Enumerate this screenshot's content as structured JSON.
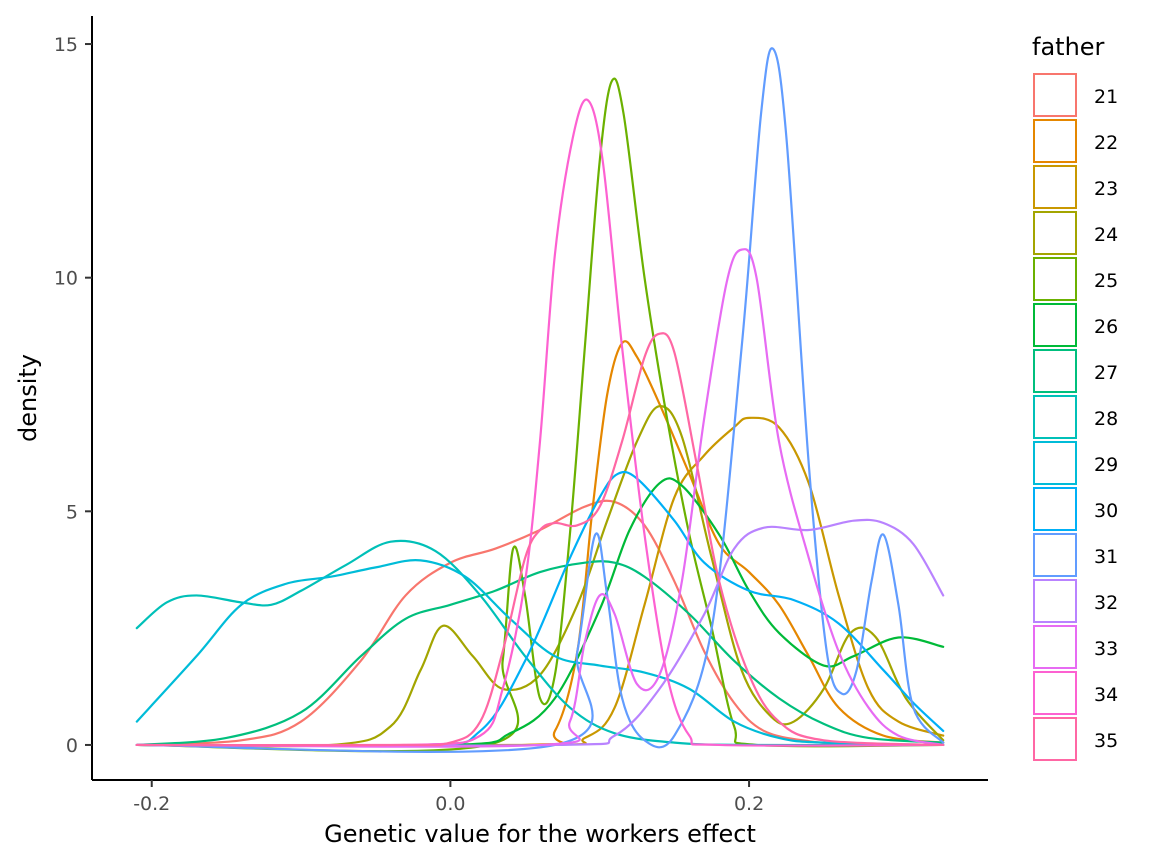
{
  "chart_data": {
    "type": "density",
    "xlabel": "Genetic value for the workers effect",
    "ylabel": "density",
    "xlim": [
      -0.24,
      0.36
    ],
    "ylim": [
      -0.75,
      15.6
    ],
    "x_ticks": [
      -0.2,
      0.0,
      0.2
    ],
    "x_tick_labels": [
      "-0.2",
      "0.0",
      "0.2"
    ],
    "y_ticks": [
      0,
      5,
      10,
      15
    ],
    "y_tick_labels": [
      "0",
      "5",
      "10",
      "15"
    ],
    "grid": false,
    "legend": {
      "title": "father",
      "position": "right",
      "entries": [
        "21",
        "22",
        "23",
        "24",
        "25",
        "26",
        "27",
        "28",
        "29",
        "30",
        "31",
        "32",
        "33",
        "34",
        "35"
      ]
    },
    "series": [
      {
        "name": "21",
        "color": "#F8766D",
        "points": [
          [
            -0.21,
            0.0
          ],
          [
            -0.14,
            0.1
          ],
          [
            -0.1,
            0.5
          ],
          [
            -0.06,
            1.8
          ],
          [
            -0.03,
            3.2
          ],
          [
            0.0,
            3.9
          ],
          [
            0.03,
            4.2
          ],
          [
            0.06,
            4.6
          ],
          [
            0.09,
            5.1
          ],
          [
            0.11,
            5.2
          ],
          [
            0.13,
            4.7
          ],
          [
            0.15,
            3.5
          ],
          [
            0.17,
            2.0
          ],
          [
            0.19,
            0.9
          ],
          [
            0.21,
            0.3
          ],
          [
            0.24,
            0.08
          ],
          [
            0.27,
            0.02
          ],
          [
            0.33,
            0.0
          ]
        ]
      },
      {
        "name": "22",
        "color": "#E58700",
        "points": [
          [
            -0.21,
            0.0
          ],
          [
            0.05,
            0.0
          ],
          [
            0.07,
            0.3
          ],
          [
            0.085,
            2.0
          ],
          [
            0.095,
            5.0
          ],
          [
            0.105,
            7.5
          ],
          [
            0.115,
            8.6
          ],
          [
            0.125,
            8.3
          ],
          [
            0.14,
            7.3
          ],
          [
            0.16,
            5.8
          ],
          [
            0.18,
            4.3
          ],
          [
            0.2,
            3.7
          ],
          [
            0.22,
            3.0
          ],
          [
            0.24,
            1.9
          ],
          [
            0.26,
            0.8
          ],
          [
            0.29,
            0.2
          ],
          [
            0.33,
            0.05
          ]
        ]
      },
      {
        "name": "23",
        "color": "#C99800",
        "points": [
          [
            -0.21,
            0.0
          ],
          [
            0.06,
            0.0
          ],
          [
            0.09,
            0.15
          ],
          [
            0.11,
            0.8
          ],
          [
            0.13,
            3.0
          ],
          [
            0.15,
            5.3
          ],
          [
            0.17,
            6.2
          ],
          [
            0.19,
            6.8
          ],
          [
            0.2,
            7.0
          ],
          [
            0.22,
            6.8
          ],
          [
            0.24,
            5.6
          ],
          [
            0.26,
            3.2
          ],
          [
            0.28,
            1.2
          ],
          [
            0.3,
            0.5
          ],
          [
            0.33,
            0.2
          ]
        ]
      },
      {
        "name": "24",
        "color": "#A3A500",
        "points": [
          [
            -0.21,
            0.0
          ],
          [
            -0.08,
            0.0
          ],
          [
            -0.04,
            0.4
          ],
          [
            -0.02,
            1.6
          ],
          [
            -0.005,
            2.55
          ],
          [
            0.015,
            1.9
          ],
          [
            0.035,
            1.2
          ],
          [
            0.06,
            1.5
          ],
          [
            0.085,
            3.0
          ],
          [
            0.105,
            4.8
          ],
          [
            0.125,
            6.5
          ],
          [
            0.14,
            7.25
          ],
          [
            0.155,
            6.6
          ],
          [
            0.175,
            4.0
          ],
          [
            0.195,
            1.6
          ],
          [
            0.215,
            0.6
          ],
          [
            0.23,
            0.5
          ],
          [
            0.25,
            1.2
          ],
          [
            0.268,
            2.4
          ],
          [
            0.285,
            2.3
          ],
          [
            0.305,
            1.0
          ],
          [
            0.33,
            0.1
          ]
        ]
      },
      {
        "name": "25",
        "color": "#6BB100",
        "points": [
          [
            -0.21,
            0.0
          ],
          [
            0.025,
            0.0
          ],
          [
            0.035,
            1.8
          ],
          [
            0.042,
            4.2
          ],
          [
            0.05,
            3.2
          ],
          [
            0.06,
            1.0
          ],
          [
            0.07,
            1.5
          ],
          [
            0.08,
            4.5
          ],
          [
            0.09,
            8.5
          ],
          [
            0.1,
            12.5
          ],
          [
            0.108,
            14.2
          ],
          [
            0.116,
            13.5
          ],
          [
            0.13,
            10.0
          ],
          [
            0.145,
            7.0
          ],
          [
            0.16,
            4.5
          ],
          [
            0.175,
            2.5
          ],
          [
            0.19,
            0.4
          ],
          [
            0.205,
            0.0
          ],
          [
            0.33,
            0.0
          ]
        ]
      },
      {
        "name": "26",
        "color": "#00BA38",
        "points": [
          [
            -0.21,
            0.0
          ],
          [
            0.0,
            0.0
          ],
          [
            0.04,
            0.25
          ],
          [
            0.07,
            1.0
          ],
          [
            0.1,
            2.9
          ],
          [
            0.12,
            4.6
          ],
          [
            0.14,
            5.6
          ],
          [
            0.155,
            5.55
          ],
          [
            0.18,
            4.5
          ],
          [
            0.2,
            3.3
          ],
          [
            0.22,
            2.4
          ],
          [
            0.25,
            1.7
          ],
          [
            0.27,
            1.9
          ],
          [
            0.3,
            2.3
          ],
          [
            0.33,
            2.1
          ]
        ]
      },
      {
        "name": "27",
        "color": "#00BF7D",
        "points": [
          [
            -0.21,
            0.0
          ],
          [
            -0.15,
            0.15
          ],
          [
            -0.1,
            0.7
          ],
          [
            -0.06,
            1.9
          ],
          [
            -0.03,
            2.7
          ],
          [
            0.0,
            3.0
          ],
          [
            0.03,
            3.3
          ],
          [
            0.06,
            3.7
          ],
          [
            0.09,
            3.9
          ],
          [
            0.11,
            3.9
          ],
          [
            0.13,
            3.6
          ],
          [
            0.16,
            2.8
          ],
          [
            0.19,
            1.8
          ],
          [
            0.22,
            1.0
          ],
          [
            0.25,
            0.45
          ],
          [
            0.28,
            0.15
          ],
          [
            0.33,
            0.05
          ]
        ]
      },
      {
        "name": "28",
        "color": "#00C0B8",
        "points": [
          [
            -0.21,
            2.5
          ],
          [
            -0.19,
            3.05
          ],
          [
            -0.17,
            3.2
          ],
          [
            -0.14,
            3.05
          ],
          [
            -0.12,
            3.0
          ],
          [
            -0.1,
            3.3
          ],
          [
            -0.07,
            3.85
          ],
          [
            -0.04,
            4.35
          ],
          [
            -0.01,
            4.15
          ],
          [
            0.02,
            3.2
          ],
          [
            0.05,
            1.9
          ],
          [
            0.08,
            0.8
          ],
          [
            0.11,
            0.25
          ],
          [
            0.15,
            0.05
          ],
          [
            0.2,
            0.0
          ],
          [
            0.33,
            0.0
          ]
        ]
      },
      {
        "name": "29",
        "color": "#00BCD8",
        "points": [
          [
            -0.21,
            0.5
          ],
          [
            -0.17,
            1.9
          ],
          [
            -0.14,
            3.0
          ],
          [
            -0.11,
            3.45
          ],
          [
            -0.08,
            3.6
          ],
          [
            -0.05,
            3.8
          ],
          [
            -0.02,
            3.95
          ],
          [
            0.01,
            3.6
          ],
          [
            0.04,
            2.7
          ],
          [
            0.07,
            1.9
          ],
          [
            0.1,
            1.7
          ],
          [
            0.13,
            1.55
          ],
          [
            0.16,
            1.2
          ],
          [
            0.19,
            0.5
          ],
          [
            0.22,
            0.15
          ],
          [
            0.25,
            0.05
          ],
          [
            0.33,
            0.0
          ]
        ]
      },
      {
        "name": "30",
        "color": "#00B0F6",
        "points": [
          [
            -0.21,
            0.0
          ],
          [
            -0.02,
            0.0
          ],
          [
            0.02,
            0.3
          ],
          [
            0.05,
            1.8
          ],
          [
            0.08,
            4.0
          ],
          [
            0.1,
            5.3
          ],
          [
            0.112,
            5.8
          ],
          [
            0.125,
            5.7
          ],
          [
            0.15,
            4.8
          ],
          [
            0.17,
            3.9
          ],
          [
            0.2,
            3.3
          ],
          [
            0.23,
            3.1
          ],
          [
            0.26,
            2.6
          ],
          [
            0.29,
            1.6
          ],
          [
            0.31,
            0.9
          ],
          [
            0.33,
            0.3
          ]
        ]
      },
      {
        "name": "31",
        "color": "#619CFF",
        "points": [
          [
            -0.21,
            0.0
          ],
          [
            0.07,
            0.0
          ],
          [
            0.085,
            2.0
          ],
          [
            0.097,
            4.5
          ],
          [
            0.105,
            3.2
          ],
          [
            0.115,
            1.0
          ],
          [
            0.13,
            0.1
          ],
          [
            0.15,
            0.2
          ],
          [
            0.175,
            2.5
          ],
          [
            0.195,
            8.5
          ],
          [
            0.208,
            13.5
          ],
          [
            0.216,
            14.9
          ],
          [
            0.225,
            13.0
          ],
          [
            0.24,
            6.0
          ],
          [
            0.252,
            2.0
          ],
          [
            0.262,
            1.1
          ],
          [
            0.272,
            1.6
          ],
          [
            0.282,
            3.5
          ],
          [
            0.29,
            4.5
          ],
          [
            0.3,
            3.0
          ],
          [
            0.31,
            0.8
          ],
          [
            0.33,
            0.05
          ]
        ]
      },
      {
        "name": "32",
        "color": "#B983FF",
        "points": [
          [
            -0.21,
            0.0
          ],
          [
            0.07,
            0.0
          ],
          [
            0.11,
            0.2
          ],
          [
            0.14,
            1.2
          ],
          [
            0.17,
            2.8
          ],
          [
            0.19,
            4.2
          ],
          [
            0.21,
            4.65
          ],
          [
            0.24,
            4.6
          ],
          [
            0.27,
            4.8
          ],
          [
            0.29,
            4.75
          ],
          [
            0.31,
            4.3
          ],
          [
            0.33,
            3.2
          ]
        ]
      },
      {
        "name": "33",
        "color": "#E76BF3",
        "points": [
          [
            -0.21,
            0.0
          ],
          [
            0.06,
            0.0
          ],
          [
            0.08,
            0.5
          ],
          [
            0.09,
            2.2
          ],
          [
            0.1,
            3.2
          ],
          [
            0.11,
            2.8
          ],
          [
            0.125,
            1.3
          ],
          [
            0.14,
            1.5
          ],
          [
            0.155,
            3.5
          ],
          [
            0.17,
            7.0
          ],
          [
            0.185,
            9.9
          ],
          [
            0.195,
            10.6
          ],
          [
            0.205,
            10.0
          ],
          [
            0.22,
            6.5
          ],
          [
            0.24,
            4.0
          ],
          [
            0.26,
            2.0
          ],
          [
            0.28,
            0.8
          ],
          [
            0.3,
            0.2
          ],
          [
            0.33,
            0.0
          ]
        ]
      },
      {
        "name": "34",
        "color": "#FD61D1",
        "points": [
          [
            -0.21,
            0.0
          ],
          [
            -0.03,
            0.0
          ],
          [
            0.02,
            0.2
          ],
          [
            0.035,
            1.2
          ],
          [
            0.05,
            3.5
          ],
          [
            0.06,
            6.5
          ],
          [
            0.07,
            10.5
          ],
          [
            0.082,
            13.0
          ],
          [
            0.092,
            13.8
          ],
          [
            0.102,
            12.5
          ],
          [
            0.115,
            8.5
          ],
          [
            0.13,
            4.5
          ],
          [
            0.145,
            1.5
          ],
          [
            0.16,
            0.2
          ],
          [
            0.18,
            0.0
          ],
          [
            0.33,
            0.0
          ]
        ]
      },
      {
        "name": "35",
        "color": "#FF67A4",
        "points": [
          [
            -0.21,
            0.0
          ],
          [
            -0.04,
            0.0
          ],
          [
            0.0,
            0.05
          ],
          [
            0.02,
            0.5
          ],
          [
            0.035,
            2.0
          ],
          [
            0.05,
            4.0
          ],
          [
            0.06,
            4.6
          ],
          [
            0.07,
            4.75
          ],
          [
            0.085,
            4.7
          ],
          [
            0.1,
            5.1
          ],
          [
            0.115,
            6.5
          ],
          [
            0.13,
            8.3
          ],
          [
            0.14,
            8.8
          ],
          [
            0.15,
            8.4
          ],
          [
            0.165,
            6.0
          ],
          [
            0.18,
            3.5
          ],
          [
            0.2,
            1.5
          ],
          [
            0.22,
            0.5
          ],
          [
            0.25,
            0.1
          ],
          [
            0.33,
            0.0
          ]
        ]
      }
    ]
  }
}
